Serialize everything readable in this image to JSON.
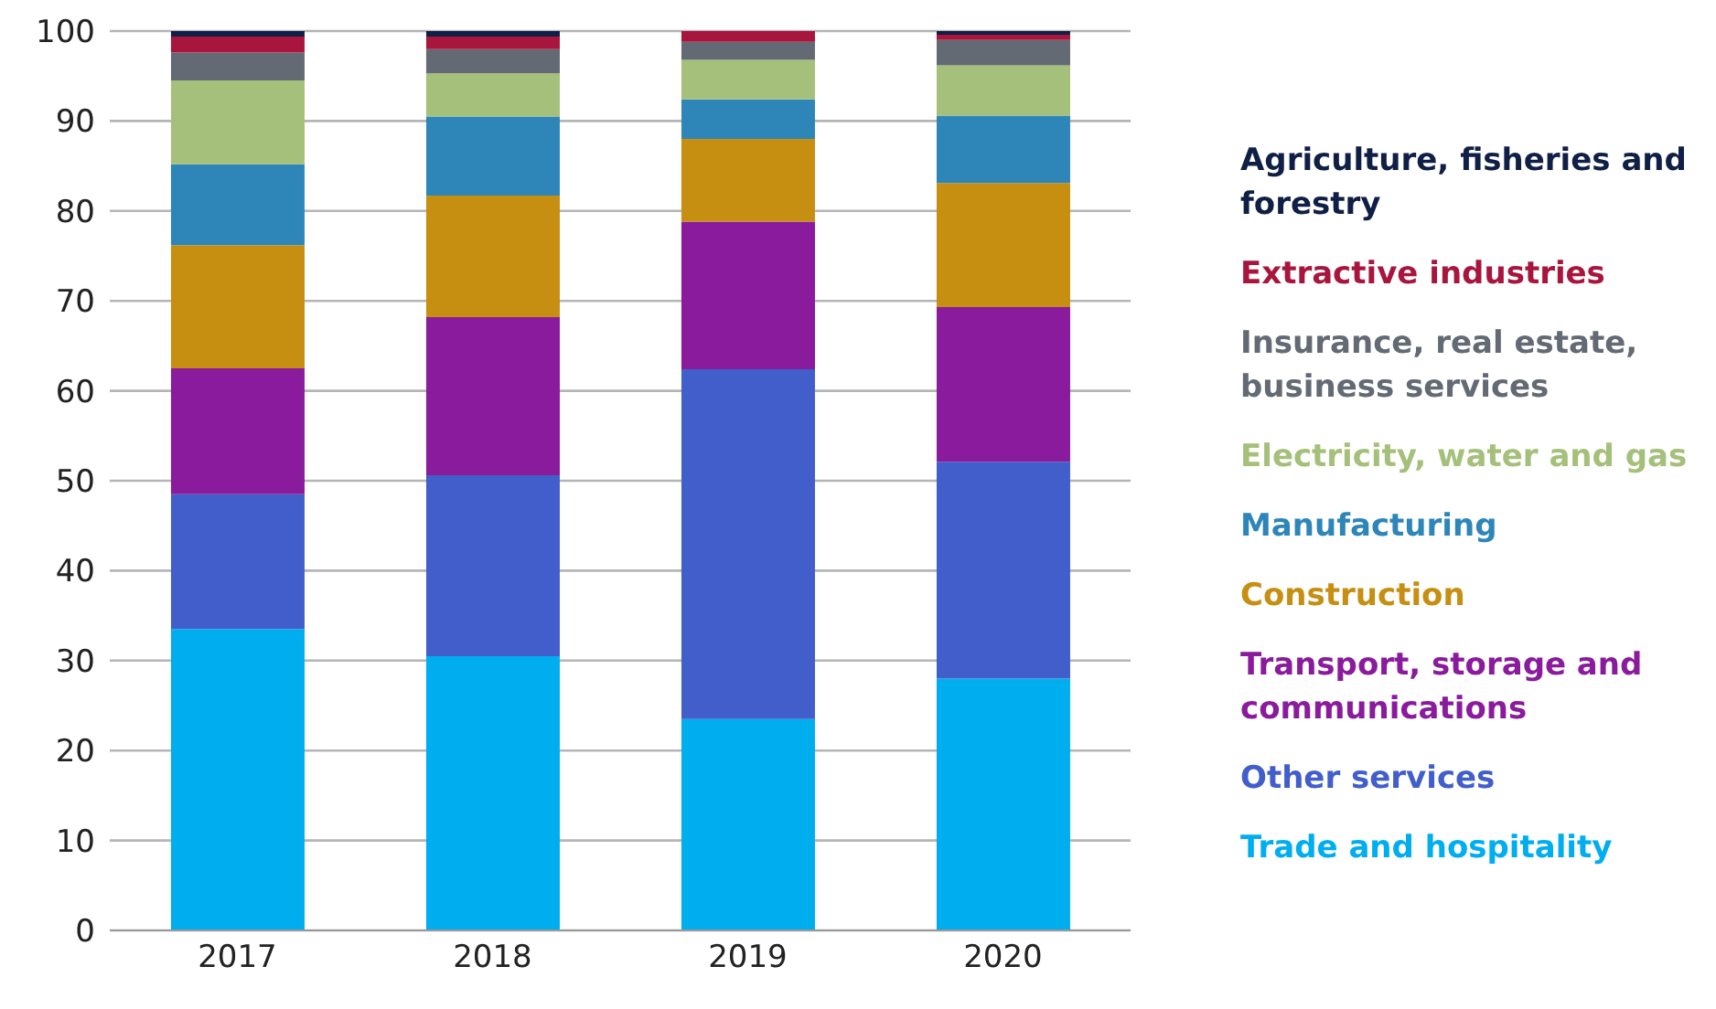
{
  "chart_data": {
    "type": "bar",
    "stacked": true,
    "categories": [
      "2017",
      "2018",
      "2019",
      "2020"
    ],
    "series": [
      {
        "name": "Trade and hospitality",
        "color": "#00aeef",
        "values": [
          33.5,
          30.5,
          23.5,
          28.0
        ]
      },
      {
        "name": "Other services",
        "color": "#415ecb",
        "values": [
          15.0,
          20.1,
          38.9,
          24.1
        ]
      },
      {
        "name": "Transport, storage and communications",
        "color": "#891b9c",
        "values": [
          14.0,
          17.6,
          16.4,
          17.2
        ]
      },
      {
        "name": "Construction",
        "color": "#c68f12",
        "values": [
          13.7,
          13.5,
          9.2,
          13.8
        ]
      },
      {
        "name": "Manufacturing",
        "color": "#2e86b8",
        "values": [
          9.0,
          8.8,
          4.4,
          7.5
        ]
      },
      {
        "name": "Electricity, water and gas",
        "color": "#a5c07a",
        "values": [
          9.3,
          4.8,
          4.4,
          5.6
        ]
      },
      {
        "name": "Insurance, real estate, business services",
        "color": "#636a73",
        "values": [
          3.1,
          2.7,
          2.0,
          2.8
        ]
      },
      {
        "name": "Extractive industries",
        "color": "#a8163e",
        "values": [
          1.8,
          1.4,
          1.2,
          0.6
        ]
      },
      {
        "name": "Agriculture, fisheries and forestry",
        "color": "#0f1f45",
        "values": [
          0.6,
          0.6,
          0,
          0.4
        ]
      }
    ],
    "ylim": [
      0,
      100
    ],
    "yticks": [
      0,
      10,
      20,
      30,
      40,
      50,
      60,
      70,
      80,
      90,
      100
    ],
    "grid": "y",
    "legend": "right"
  }
}
